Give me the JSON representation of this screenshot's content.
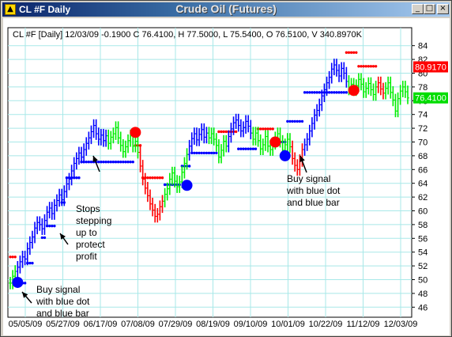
{
  "window": {
    "title": "CL #F Daily",
    "chart_heading": "Crude Oil (Futures)",
    "controls": [
      "_",
      "□",
      "×"
    ]
  },
  "info_line": "CL #F [Daily] 12/03/09  -0.1900 C 76.4100, H 77.5000, L 75.5400, O 76.5100, V 340.8970K",
  "annotations": {
    "buy_signal_1": [
      "Buy signal",
      "with blue dot",
      "and blue bar"
    ],
    "stops": [
      "Stops",
      "stepping",
      "up to",
      "protect",
      "profit"
    ],
    "buy_signal_2": [
      "Buy signal",
      "with blue dot",
      "and blue bar"
    ]
  },
  "price_badges": {
    "red": {
      "value": "80.9170",
      "color": "#ff0000"
    },
    "green": {
      "value": "76.4100",
      "color": "#00dd00"
    }
  },
  "colors": {
    "up_bar": "#0000ff",
    "bull_bar": "#00ee00",
    "bear_bar": "#ff0000",
    "stop_dots": "#0000ff",
    "stop_dots_short": "#ff0000",
    "grid": "#a8e8e8",
    "buy_dot": "#0000ff",
    "sell_dot": "#ff0000"
  },
  "chart_data": {
    "type": "ohlc",
    "title": "Crude Oil (Futures)",
    "y_ticks": [
      46,
      48,
      50,
      52,
      54,
      56,
      58,
      60,
      62,
      64,
      66,
      68,
      70,
      72,
      74,
      76,
      78,
      80,
      82,
      84
    ],
    "ylim": [
      45,
      85
    ],
    "x_tick_labels": [
      "05/05/09",
      "05/27/09",
      "06/17/09",
      "07/08/09",
      "07/29/09",
      "08/19/09",
      "09/10/09",
      "10/01/09",
      "10/22/09",
      "11/12/09",
      "12/03/09"
    ],
    "grid": true,
    "segments": [
      {
        "color": "bull",
        "closes": [
          49.5,
          50.5,
          51.2
        ]
      },
      {
        "color": "up",
        "closes": [
          51.8,
          52.6,
          53.3,
          53.0,
          54.5,
          55.4,
          56.2,
          57.5,
          58.3,
          58.0,
          57.4,
          58.6,
          59.8,
          60.4,
          59.6,
          60.8,
          61.5,
          62.3,
          61.6,
          62.8,
          63.9,
          64.6,
          65.8,
          66.9,
          67.6,
          68.4,
          67.8,
          68.9,
          69.8,
          70.6,
          71.5,
          72.4,
          71.2,
          70.4,
          71.0,
          70.2,
          70.9
        ]
      },
      {
        "color": "bull",
        "closes": [
          69.8,
          70.7,
          71.2,
          72.1,
          70.6,
          69.5,
          68.6,
          69.3,
          70.2,
          70.9,
          69.4,
          70.1,
          68.5
        ]
      },
      {
        "color": "bear",
        "closes": [
          66.5,
          64.6,
          63.3,
          62.2,
          61.0,
          60.1,
          59.2,
          59.5,
          60.6,
          61.4
        ]
      },
      {
        "color": "bull",
        "closes": [
          62.4,
          63.2,
          64.6,
          65.5,
          64.3,
          63.5,
          64.2,
          65.6,
          66.9,
          68.2
        ]
      },
      {
        "color": "up",
        "closes": [
          69.4,
          70.5,
          71.2,
          70.3,
          71.1,
          71.8,
          70.7,
          71.3
        ]
      },
      {
        "color": "bull",
        "closes": [
          70.6,
          71.2,
          70.4,
          69.5,
          67.8,
          68.8,
          70.1,
          69.4
        ]
      },
      {
        "color": "up",
        "closes": [
          70.8,
          71.9,
          72.8,
          73.2,
          72.4,
          71.6,
          72.1,
          73.0,
          72.3,
          71.3
        ]
      },
      {
        "color": "bull",
        "closes": [
          70.4,
          71.3,
          70.2,
          69.0,
          69.6,
          70.8,
          69.4,
          68.9,
          69.8,
          70.6,
          71.2,
          70.1,
          68.8,
          69.6,
          70.4,
          69.3
        ]
      },
      {
        "color": "bear",
        "closes": [
          67.6,
          66.6,
          66.0,
          67.3,
          68.9
        ]
      },
      {
        "color": "up",
        "closes": [
          69.6,
          70.4,
          71.6,
          72.7,
          73.9,
          74.6,
          75.4,
          76.7,
          77.6,
          78.6,
          79.4,
          80.6,
          81.2,
          80.4,
          79.6,
          80.7,
          80.0,
          78.8
        ]
      },
      {
        "color": "bull",
        "closes": [
          77.7,
          78.4,
          77.6,
          78.2,
          79.1,
          78.4,
          77.3,
          77.8,
          78.5,
          77.6,
          76.9,
          78.0
        ]
      },
      {
        "color": "bear",
        "closes": [
          78.6,
          77.7,
          77.1
        ]
      },
      {
        "color": "bull",
        "closes": [
          77.8,
          78.6,
          77.2,
          76.1,
          74.5,
          76.3,
          77.4,
          78.0,
          77.3,
          76.4
        ]
      }
    ],
    "stop_runs": [
      {
        "color": "red",
        "value": 53.3,
        "start": 0,
        "end": 2
      },
      {
        "color": "blue",
        "value": 49.5,
        "start": 3,
        "end": 6
      },
      {
        "color": "blue",
        "value": 52.4,
        "start": 7,
        "end": 9
      },
      {
        "color": "blue",
        "value": 56.1,
        "start": 13,
        "end": 14
      },
      {
        "color": "blue",
        "value": 57.8,
        "start": 15,
        "end": 18
      },
      {
        "color": "blue",
        "value": 61.2,
        "start": 21,
        "end": 22
      },
      {
        "color": "blue",
        "value": 64.8,
        "start": 23,
        "end": 28
      },
      {
        "color": "blue",
        "value": 67.1,
        "start": 29,
        "end": 50
      },
      {
        "color": "red",
        "value": 69.5,
        "start": 51,
        "end": 53
      },
      {
        "color": "red",
        "value": 64.8,
        "start": 54,
        "end": 62
      },
      {
        "color": "blue",
        "value": 63.8,
        "start": 63,
        "end": 69
      },
      {
        "color": "blue",
        "value": 66.5,
        "start": 70,
        "end": 73
      },
      {
        "color": "blue",
        "value": 68.4,
        "start": 74,
        "end": 84
      },
      {
        "color": "red",
        "value": 71.5,
        "start": 85,
        "end": 92
      },
      {
        "color": "blue",
        "value": 69.0,
        "start": 93,
        "end": 100
      },
      {
        "color": "red",
        "value": 71.9,
        "start": 101,
        "end": 107
      },
      {
        "color": "blue",
        "value": 70.0,
        "start": 108,
        "end": 112
      },
      {
        "color": "blue",
        "value": 73.0,
        "start": 113,
        "end": 119
      },
      {
        "color": "blue",
        "value": 77.2,
        "start": 120,
        "end": 137
      },
      {
        "color": "red",
        "value": 83.0,
        "start": 137,
        "end": 141
      },
      {
        "color": "red",
        "value": 81.0,
        "start": 142,
        "end": 149
      }
    ],
    "signal_markers": [
      {
        "color": "blue",
        "bar": 3,
        "value": 49.6
      },
      {
        "color": "red",
        "bar": 51,
        "value": 71.4
      },
      {
        "color": "blue",
        "bar": 72,
        "value": 63.7
      },
      {
        "color": "red",
        "bar": 108,
        "value": 70.0
      },
      {
        "color": "blue",
        "bar": 112,
        "value": 68.0
      },
      {
        "color": "red",
        "bar": 140,
        "value": 77.5
      }
    ]
  }
}
